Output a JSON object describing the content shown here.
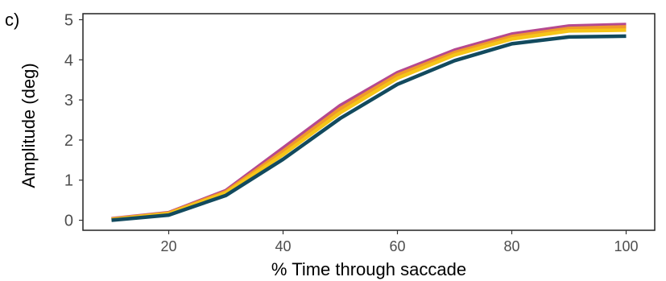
{
  "panel_label": "c)",
  "chart_data": {
    "type": "line",
    "xlabel": "% Time through saccade",
    "ylabel": "Amplitude (deg)",
    "xlim": [
      5,
      105
    ],
    "ylim": [
      -0.25,
      5.15
    ],
    "x_ticks": [
      20,
      40,
      60,
      80,
      100
    ],
    "y_ticks": [
      0,
      1,
      2,
      3,
      4,
      5
    ],
    "grid": false,
    "x": [
      10,
      20,
      30,
      40,
      50,
      60,
      70,
      80,
      90,
      100
    ],
    "series": [
      {
        "color": "#b5498f",
        "values": [
          0.04,
          0.19,
          0.74,
          1.8,
          2.86,
          3.68,
          4.24,
          4.64,
          4.84,
          4.88
        ]
      },
      {
        "color": "#f09a2a",
        "values": [
          0.03,
          0.18,
          0.71,
          1.72,
          2.78,
          3.62,
          4.18,
          4.58,
          4.78,
          4.82
        ]
      },
      {
        "color": "#f5c518",
        "values": [
          0.02,
          0.16,
          0.68,
          1.64,
          2.68,
          3.54,
          4.12,
          4.52,
          4.72,
          4.74
        ]
      },
      {
        "color": "#124a5e",
        "values": [
          0.0,
          0.13,
          0.62,
          1.52,
          2.54,
          3.39,
          3.98,
          4.4,
          4.57,
          4.59
        ]
      }
    ]
  }
}
